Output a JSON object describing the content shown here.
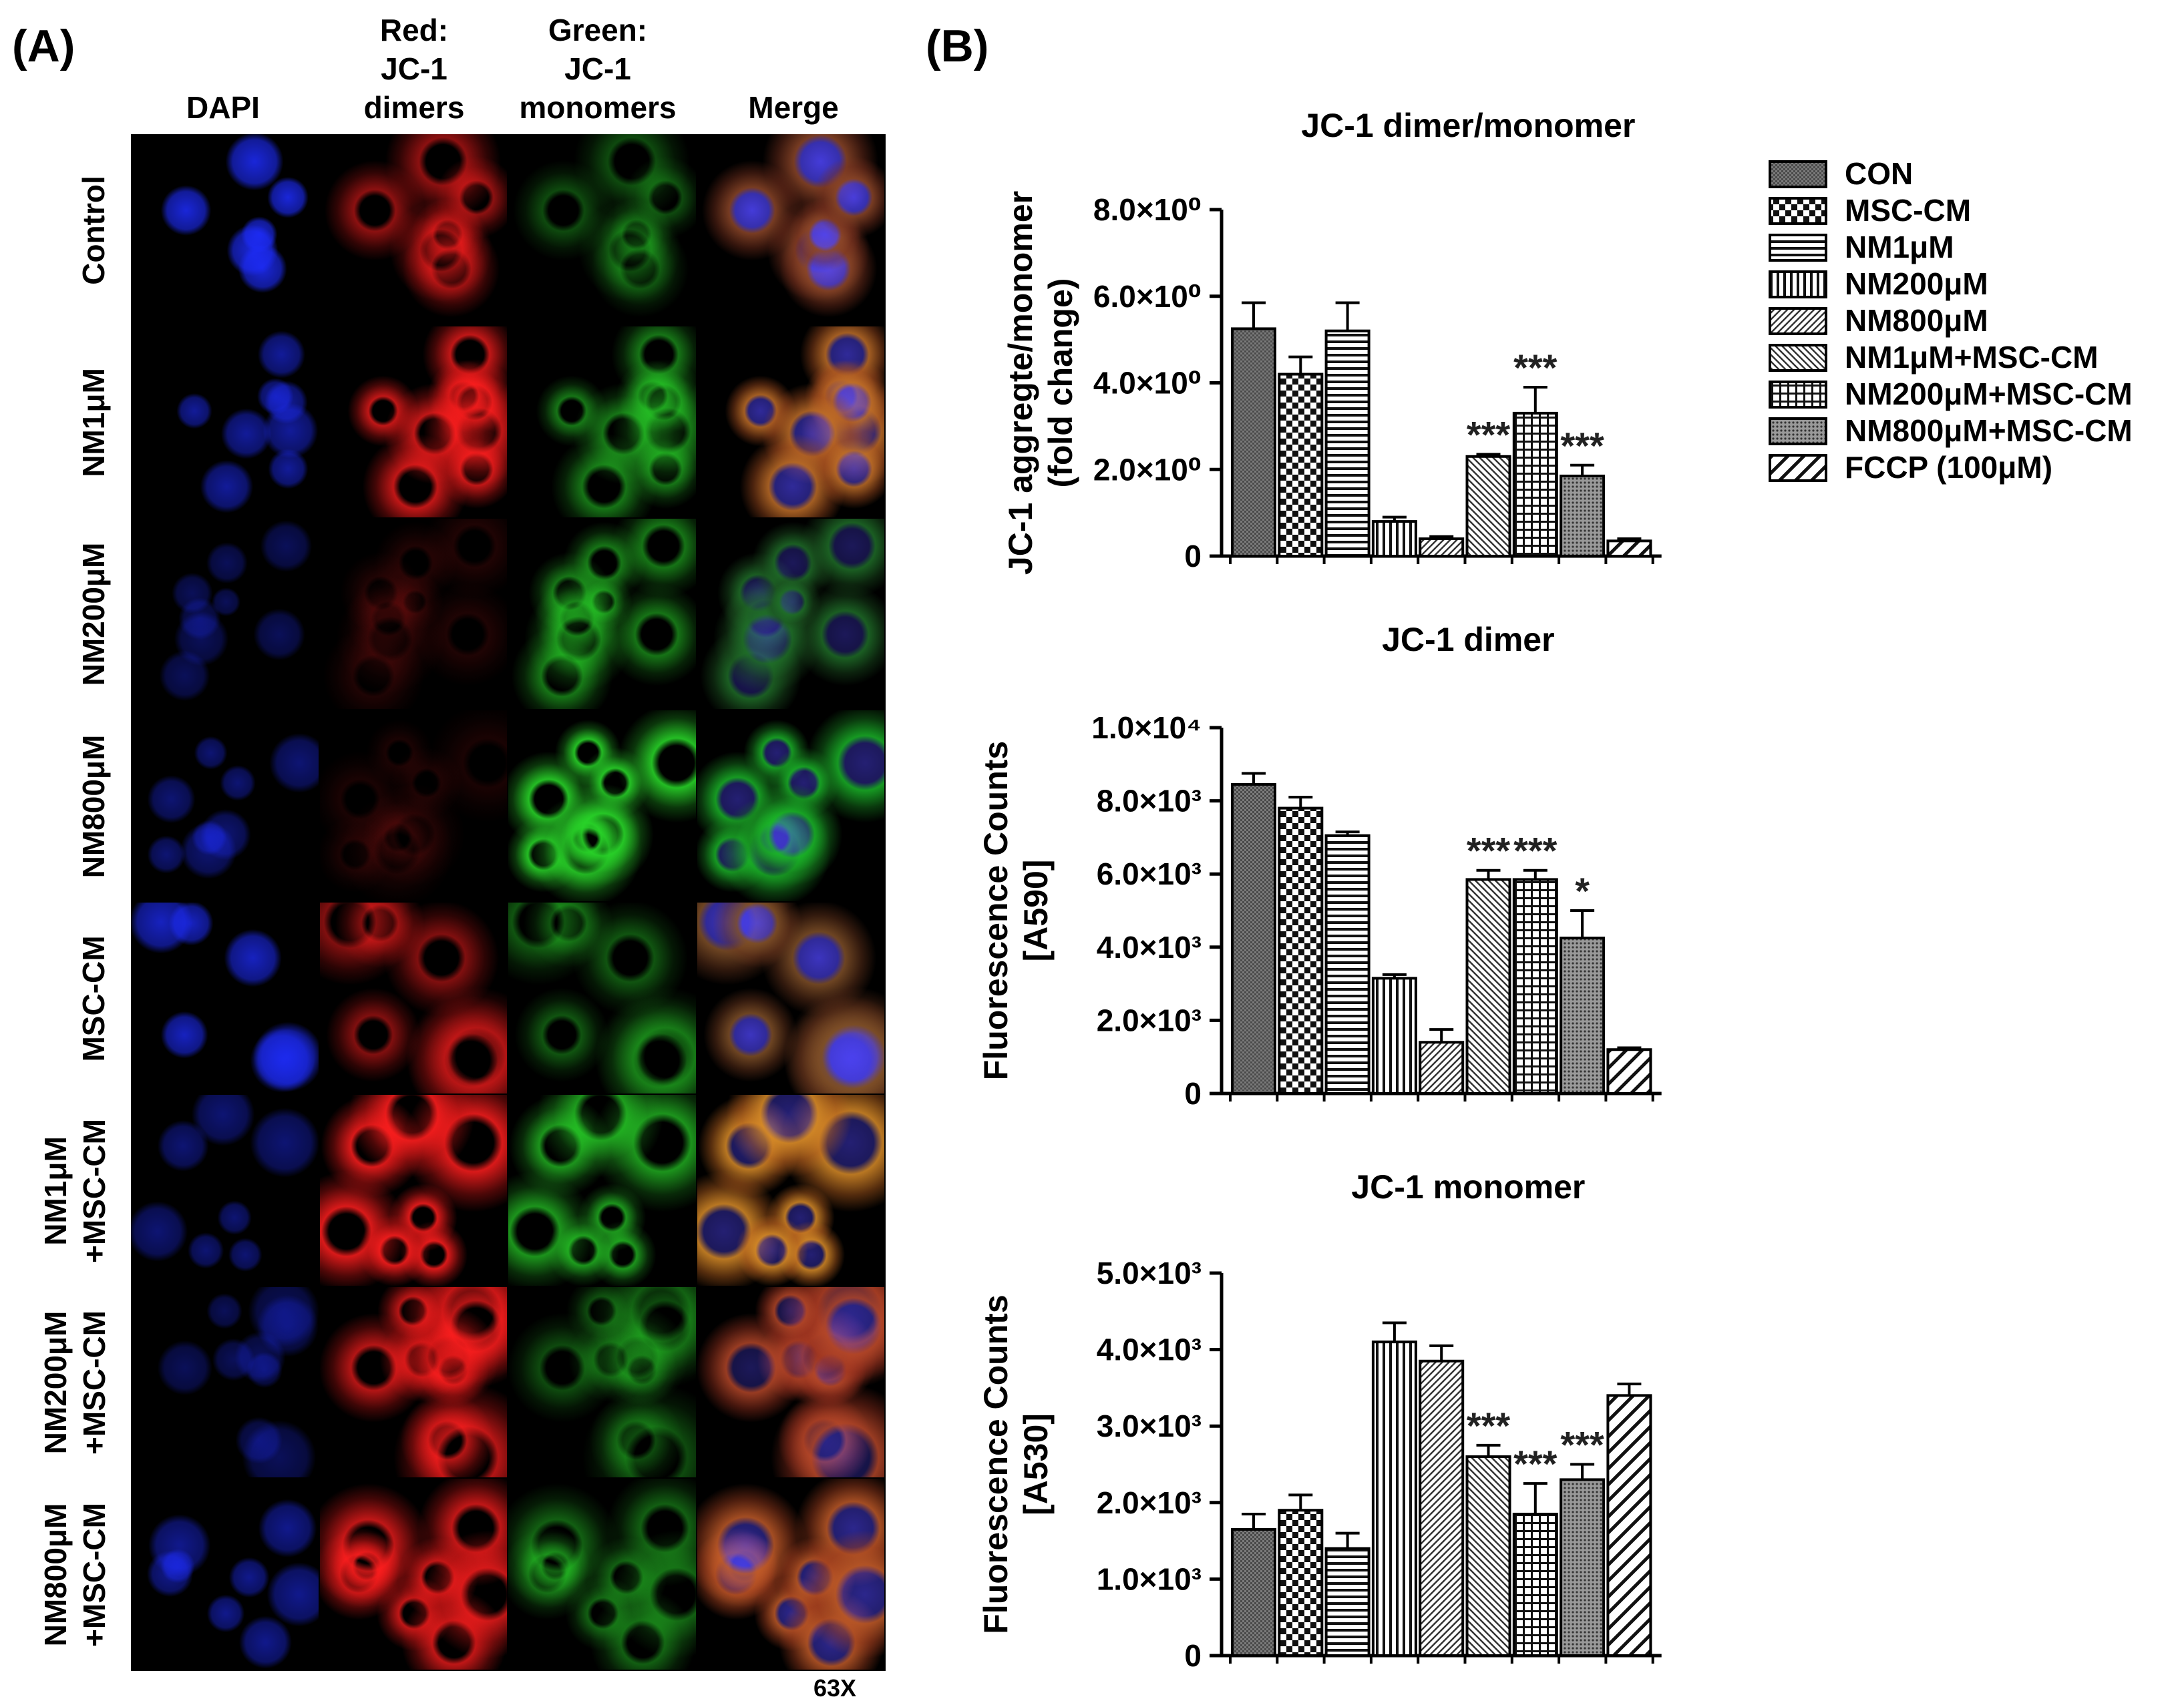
{
  "panel_a": {
    "label": "(A)",
    "columns": [
      "DAPI",
      "Red:\nJC-1\ndimers",
      "Green:\nJC-1\nmonomers",
      "Merge"
    ],
    "rows": [
      "Control",
      "NM1μM",
      "NM200μM",
      "NM800μM",
      "MSC-CM",
      "NM1μM\n+MSC-CM",
      "NM200μM\n+MSC-CM",
      "NM800μM\n+MSC-CM"
    ],
    "magnification": "63X",
    "intensity": {
      "red": [
        0.55,
        0.75,
        0.12,
        0.1,
        0.5,
        0.85,
        0.7,
        0.75
      ],
      "green": [
        0.35,
        0.55,
        0.55,
        0.9,
        0.4,
        0.7,
        0.35,
        0.45
      ],
      "blue": [
        0.85,
        0.6,
        0.35,
        0.45,
        0.75,
        0.45,
        0.35,
        0.55
      ]
    },
    "colors": {
      "dapi": "#1a2bff",
      "red": "#ff1a1a",
      "green": "#1fd11f"
    }
  },
  "panel_b": {
    "label": "(B)"
  },
  "legend": [
    {
      "label": "CON",
      "pattern": "dense"
    },
    {
      "label": "MSC-CM",
      "pattern": "checker"
    },
    {
      "label": "NM1μM",
      "pattern": "hlines"
    },
    {
      "label": "NM200μM",
      "pattern": "vlines"
    },
    {
      "label": "NM800μM",
      "pattern": "diag"
    },
    {
      "label": "NM1μM+MSC-CM",
      "pattern": "diag2"
    },
    {
      "label": "NM200μM+MSC-CM",
      "pattern": "grid"
    },
    {
      "label": "NM800μM+MSC-CM",
      "pattern": "dots"
    },
    {
      "label": "FCCP  (100μM)",
      "pattern": "bigdiag"
    }
  ],
  "chart_data": [
    {
      "type": "bar",
      "title": "JC-1 dimer/monomer",
      "ylabel": "JC-1 aggregte/monomer\n(fold change)",
      "ylim": [
        0,
        8
      ],
      "yticks": [
        0,
        2,
        4,
        6,
        8
      ],
      "ytick_labels": [
        "0",
        "2.0×10⁰",
        "4.0×10⁰",
        "6.0×10⁰",
        "8.0×10⁰"
      ],
      "categories": [
        "CON",
        "MSC-CM",
        "NM1μM",
        "NM200μM",
        "NM800μM",
        "NM1μM+MSC-CM",
        "NM200μM+MSC-CM",
        "NM800μM+MSC-CM",
        "FCCP  (100μM)"
      ],
      "values": [
        5.25,
        4.2,
        5.2,
        0.8,
        0.4,
        2.3,
        3.3,
        1.85,
        0.35
      ],
      "errors": [
        0.6,
        0.4,
        0.65,
        0.1,
        0.05,
        0.05,
        0.6,
        0.25,
        0.05
      ],
      "annotations": [
        "",
        "",
        "",
        "",
        "",
        "***",
        "***",
        "***",
        ""
      ]
    },
    {
      "type": "bar",
      "title": "JC-1 dimer",
      "ylabel": "Fluorescence Counts\n[A590]",
      "ylim": [
        0,
        10000
      ],
      "yticks": [
        0,
        2000,
        4000,
        6000,
        8000,
        10000
      ],
      "ytick_labels": [
        "0",
        "2.0×10³",
        "4.0×10³",
        "6.0×10³",
        "8.0×10³",
        "1.0×10⁴"
      ],
      "categories": [
        "CON",
        "MSC-CM",
        "NM1μM",
        "NM200μM",
        "NM800μM",
        "NM1μM+MSC-CM",
        "NM200μM+MSC-CM",
        "NM800μM+MSC-CM",
        "FCCP  (100μM)"
      ],
      "values": [
        8450,
        7800,
        7050,
        3150,
        1400,
        5850,
        5850,
        4250,
        1200
      ],
      "errors": [
        300,
        300,
        100,
        100,
        350,
        250,
        250,
        750,
        50
      ],
      "annotations": [
        "",
        "",
        "",
        "",
        "",
        "***",
        "***",
        "*",
        ""
      ]
    },
    {
      "type": "bar",
      "title": "JC-1 monomer",
      "ylabel": "Fluorescence Counts\n[A530]",
      "ylim": [
        0,
        5000
      ],
      "yticks": [
        0,
        1000,
        2000,
        3000,
        4000,
        5000
      ],
      "ytick_labels": [
        "0",
        "1.0×10³",
        "2.0×10³",
        "3.0×10³",
        "4.0×10³",
        "5.0×10³"
      ],
      "categories": [
        "CON",
        "MSC-CM",
        "NM1μM",
        "NM200μM",
        "NM800μM",
        "NM1μM+MSC-CM",
        "NM200μM+MSC-CM",
        "NM800μM+MSC-CM",
        "FCCP  (100μM)"
      ],
      "values": [
        1650,
        1900,
        1400,
        4100,
        3850,
        2600,
        1850,
        2300,
        3400
      ],
      "errors": [
        200,
        200,
        200,
        250,
        200,
        150,
        400,
        200,
        150
      ],
      "annotations": [
        "",
        "",
        "",
        "",
        "",
        "***",
        "***",
        "***",
        ""
      ]
    }
  ]
}
